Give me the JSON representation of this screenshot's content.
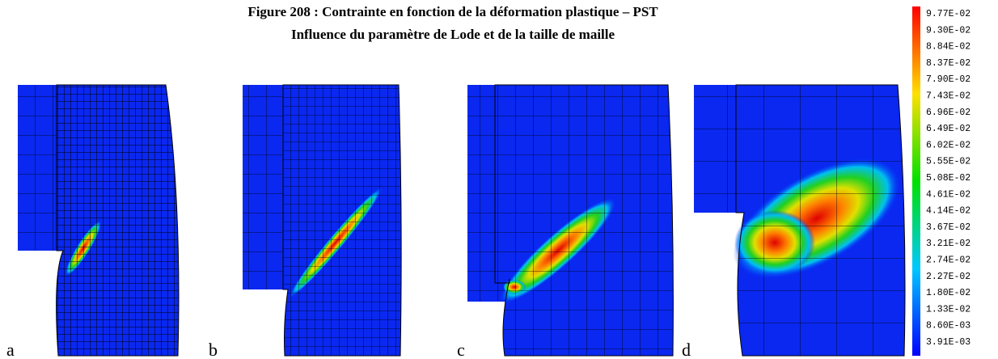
{
  "figure": {
    "title_lines": [
      "Figure 208 : Contrainte en fonction de la déformation plastique – PST",
      "Influence du paramètre de Lode et de la taille de maille"
    ],
    "panel_labels": [
      "a",
      "b",
      "c",
      "d"
    ]
  },
  "colorbar": {
    "labels": [
      "9.77E-02",
      "9.30E-02",
      "8.84E-02",
      "8.37E-02",
      "7.90E-02",
      "7.43E-02",
      "6.96E-02",
      "6.49E-02",
      "6.02E-02",
      "5.55E-02",
      "5.08E-02",
      "4.61E-02",
      "4.14E-02",
      "3.67E-02",
      "3.21E-02",
      "2.74E-02",
      "2.27E-02",
      "1.80E-02",
      "1.33E-02",
      "8.60E-03",
      "3.91E-03"
    ]
  }
}
